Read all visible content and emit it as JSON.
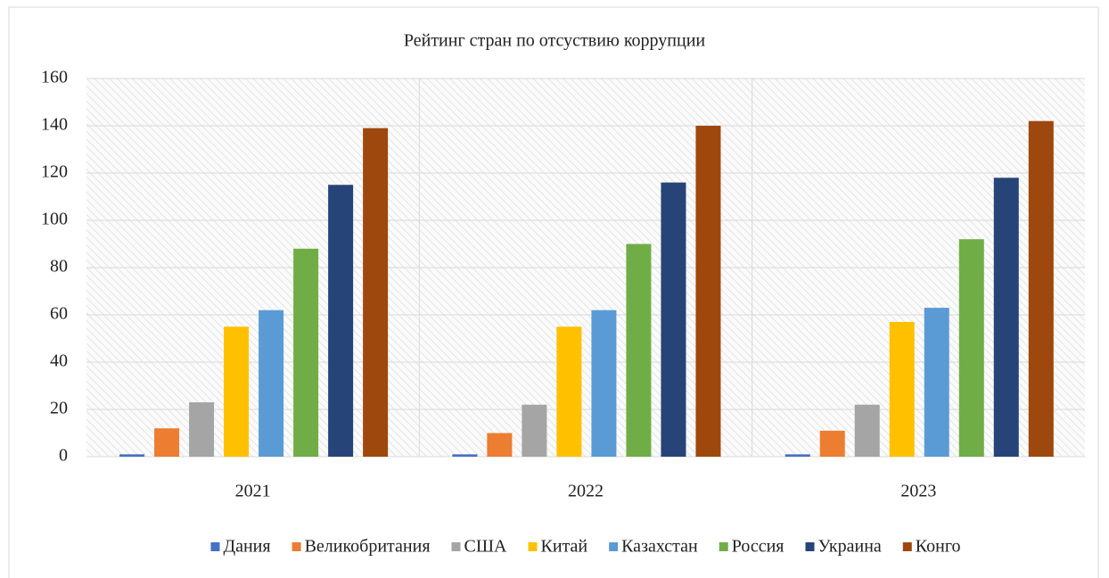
{
  "chart_data": {
    "type": "bar",
    "title": "Рейтинг стран по отсуствию коррупции",
    "categories": [
      "2021",
      "2022",
      "2023"
    ],
    "series": [
      {
        "name": "Дания",
        "color": "#4472c4",
        "values": [
          1,
          1,
          1
        ]
      },
      {
        "name": "Великобритания",
        "color": "#ed7d31",
        "values": [
          12,
          10,
          11
        ]
      },
      {
        "name": "США",
        "color": "#a5a5a5",
        "values": [
          23,
          22,
          22
        ]
      },
      {
        "name": "Китай",
        "color": "#ffc000",
        "values": [
          55,
          55,
          57
        ]
      },
      {
        "name": "Казахстан",
        "color": "#5b9bd5",
        "values": [
          62,
          62,
          63
        ]
      },
      {
        "name": "Россия",
        "color": "#70ad47",
        "values": [
          88,
          90,
          92
        ]
      },
      {
        "name": "Украина",
        "color": "#264478",
        "values": [
          115,
          116,
          118
        ]
      },
      {
        "name": "Конго",
        "color": "#9e480e",
        "values": [
          139,
          140,
          142
        ]
      }
    ],
    "ylim": [
      0,
      160
    ],
    "yticks": [
      0,
      20,
      40,
      60,
      80,
      100,
      120,
      140,
      160
    ],
    "grid": true,
    "legend": "bottom"
  }
}
